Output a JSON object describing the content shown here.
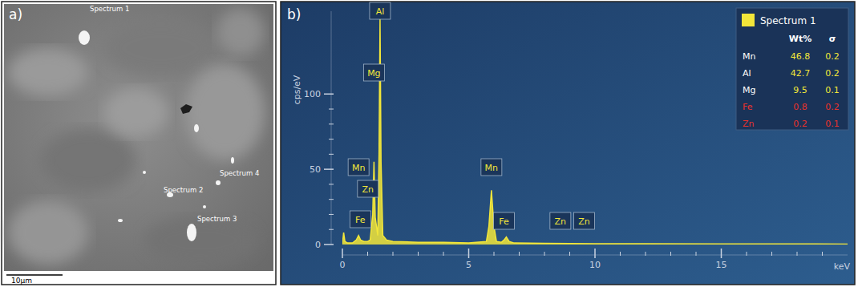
{
  "image_panel": {
    "label": "a)",
    "spots": [
      "Spectrum 1",
      "Spectrum 2",
      "Spectrum 3",
      "Spectrum 4"
    ],
    "scale_bar": "10µm"
  },
  "spectrum_panel_label": "b)",
  "chart_data": {
    "type": "line",
    "color": "#f2e63a",
    "y_label": "cps/eV",
    "x_label": "keV",
    "x": [
      0,
      0.05,
      0.1,
      0.2,
      0.4,
      0.55,
      0.64,
      0.72,
      0.85,
      1.0,
      1.1,
      1.2,
      1.25,
      1.3,
      1.4,
      1.45,
      1.49,
      1.53,
      1.6,
      1.75,
      2,
      3,
      4,
      5,
      5.7,
      5.8,
      5.9,
      6.0,
      6.1,
      6.3,
      6.4,
      6.49,
      6.6,
      6.8,
      8,
      10,
      12,
      15,
      18,
      20
    ],
    "values": [
      0,
      8,
      2,
      1,
      1,
      3,
      6,
      3,
      2,
      2,
      3,
      20,
      55,
      18,
      6,
      60,
      150,
      55,
      6,
      3,
      2,
      1.5,
      1.5,
      1,
      2,
      12,
      36,
      12,
      2,
      1.5,
      3,
      5,
      2,
      1,
      0.8,
      0.5,
      0.5,
      0.4,
      0.4,
      0.3
    ],
    "xlim": [
      0,
      20
    ],
    "xticks": [
      0,
      5,
      10,
      15
    ],
    "ylim": [
      0,
      155
    ],
    "yticks": [
      0,
      50,
      100
    ],
    "peak_labels": [
      {
        "label": "Al",
        "x": 1.49
      },
      {
        "label": "Mg",
        "x": 1.25
      },
      {
        "label": "Mn",
        "x": 0.64
      },
      {
        "label": "Zn",
        "x": 1.01
      },
      {
        "label": "Fe",
        "x": 0.71
      },
      {
        "label": "Mn",
        "x": 5.9
      },
      {
        "label": "Fe",
        "x": 6.4
      },
      {
        "label": "Zn",
        "x": 8.63
      },
      {
        "label": "Zn",
        "x": 9.57
      }
    ]
  },
  "composition_table": {
    "title": "Spectrum 1",
    "columns": [
      "Wt%",
      "σ"
    ],
    "rows": [
      {
        "element": "Mn",
        "wt": "46.8",
        "sigma": "0.2",
        "color": "#f2e63a"
      },
      {
        "element": "Al",
        "wt": "42.7",
        "sigma": "0.2",
        "color": "#f2e63a"
      },
      {
        "element": "Mg",
        "wt": "9.5",
        "sigma": "0.1",
        "color": "#f2e63a"
      },
      {
        "element": "Fe",
        "wt": "0.8",
        "sigma": "0.2",
        "color": "#e8322c"
      },
      {
        "element": "Zn",
        "wt": "0.2",
        "sigma": "0.1",
        "color": "#e8322c"
      }
    ]
  }
}
